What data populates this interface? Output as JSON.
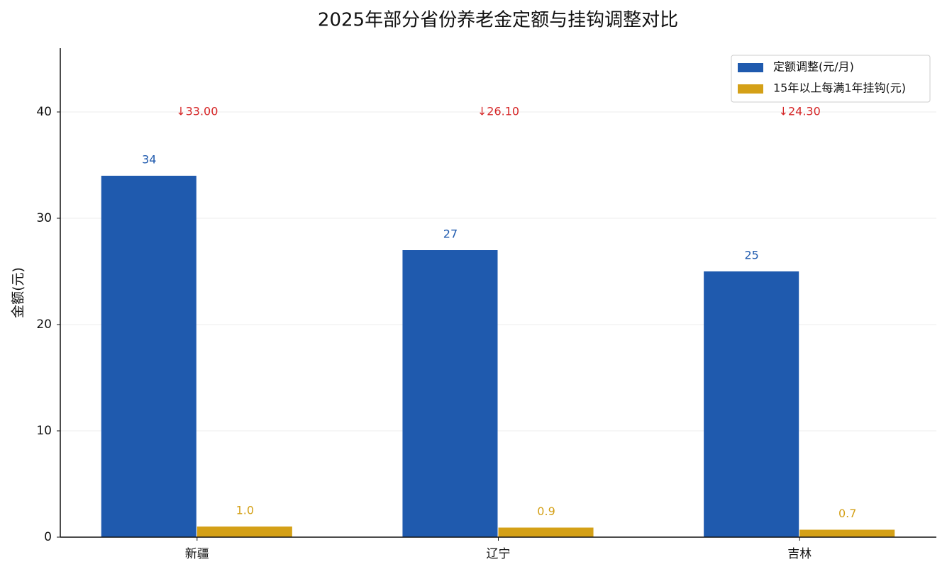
{
  "chart_data": {
    "type": "bar",
    "title": "2025年部分省份养老金定额与挂钩调整对比",
    "ylabel": "金额(元)",
    "categories": [
      "新疆",
      "辽宁",
      "吉林"
    ],
    "series": [
      {
        "name": "定额调整(元/月)",
        "color": "#1f5aae",
        "values": [
          34,
          27,
          25
        ]
      },
      {
        "name": "15年以上每满1年挂钩(元)",
        "color": "#d4a017",
        "values": [
          1.0,
          0.9,
          0.7
        ],
        "value_labels": [
          "1.0",
          "0.9",
          "0.7"
        ]
      }
    ],
    "annotations": [
      "↓33.00",
      "↓26.10",
      "↓24.30"
    ],
    "annotation_color": "#d62728",
    "ylim": [
      0,
      46
    ],
    "yticks": [
      0,
      10,
      20,
      30,
      40
    ],
    "grid": true,
    "legend": "upper right"
  }
}
